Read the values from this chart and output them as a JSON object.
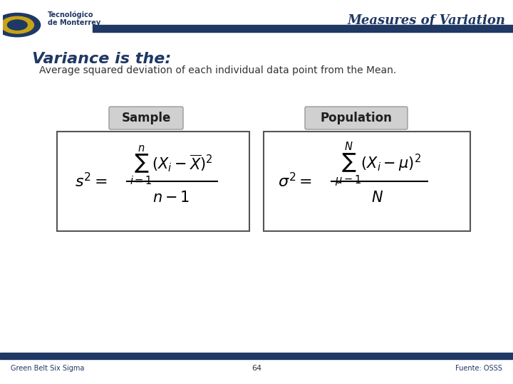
{
  "title": "Measures of Variation",
  "title_color": "#1F3864",
  "bg_color": "#FFFFFF",
  "header_bar_color": "#1F3864",
  "footer_bar_color": "#1F3864",
  "variance_title": "Variance is the:",
  "variance_subtitle": "Average squared deviation of each individual data point from the Mean.",
  "sample_label": "Sample",
  "population_label": "Population",
  "footer_left": "Green Belt Six Sigma",
  "footer_center": "64",
  "footer_right": "Fuente: OSSS",
  "dark_blue": "#1F3864",
  "medium_blue": "#2E4B8E"
}
